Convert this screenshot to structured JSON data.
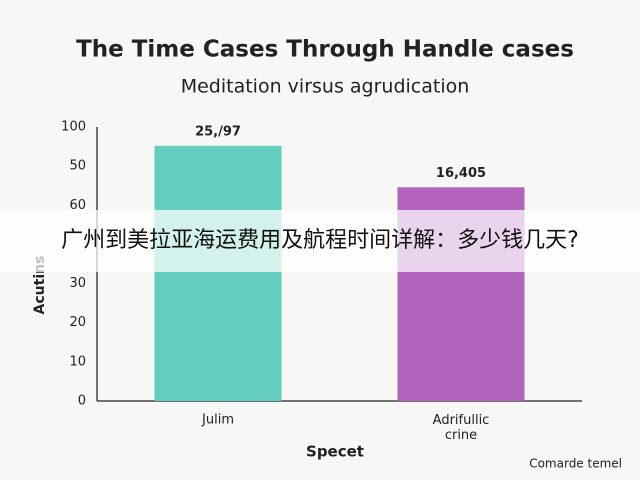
{
  "chart_data": {
    "type": "bar",
    "title": "The Time Cases Through Handle cases",
    "subtitle": "Meditation virsus agrudication",
    "y_label": "Acutins",
    "x_label": "Specet",
    "footer": "Comarde temel",
    "categories": [
      "Julim",
      "Adrifullic\ncrine"
    ],
    "values": [
      65.2,
      54.6
    ],
    "colors": [
      "#63cdbf",
      "#b263bc"
    ],
    "annotations": [
      "25,/97",
      "16,405"
    ],
    "ylim": [
      0,
      70
    ],
    "yticks": [
      0,
      10,
      20,
      30,
      {
        "value": 50,
        "label": "60"
      },
      {
        "value": 60,
        "label": "50"
      },
      {
        "value": 70,
        "label": "100"
      }
    ]
  },
  "banner": {
    "text": "广州到美拉亚海运费用及航程时间详解：多少钱几天?"
  }
}
